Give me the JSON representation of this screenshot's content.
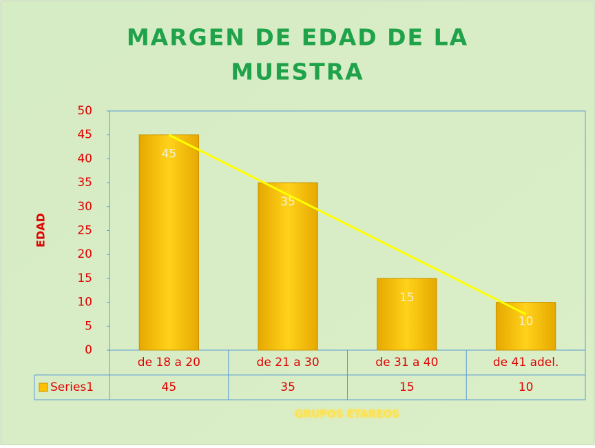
{
  "chart_data": {
    "type": "bar",
    "title": [
      "MARGEN DE EDAD DE LA",
      "MUESTRA"
    ],
    "y_label": "EDAD",
    "x_label": "GRUPOS ETAREOS",
    "categories": [
      "de 18 a 20",
      "de 21 a 30",
      "de 31 a 40",
      "de 41 adel."
    ],
    "series": [
      {
        "name": "Series1",
        "color": "#ffc000",
        "values": [
          45,
          35,
          15,
          10
        ]
      }
    ],
    "ylim": [
      0,
      50
    ],
    "yticks": [
      0,
      5,
      10,
      15,
      20,
      25,
      30,
      35,
      40,
      45,
      50
    ],
    "trendline": "linear",
    "trendline_color": "#ffff00",
    "data_table": true
  }
}
